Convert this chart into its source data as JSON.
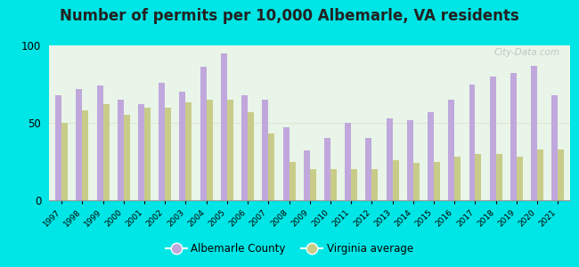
{
  "title": "Number of permits per 10,000 Albemarle, VA residents",
  "years": [
    1997,
    1998,
    1999,
    2000,
    2001,
    2002,
    2003,
    2004,
    2005,
    2006,
    2007,
    2008,
    2009,
    2010,
    2011,
    2012,
    2013,
    2014,
    2015,
    2016,
    2017,
    2018,
    2019,
    2020,
    2021
  ],
  "albemarle": [
    68,
    72,
    74,
    65,
    62,
    76,
    70,
    86,
    95,
    68,
    65,
    47,
    32,
    40,
    50,
    40,
    53,
    52,
    57,
    65,
    75,
    80,
    82,
    87,
    68
  ],
  "virginia": [
    50,
    58,
    62,
    55,
    60,
    60,
    63,
    65,
    65,
    57,
    43,
    25,
    20,
    20,
    20,
    20,
    26,
    24,
    25,
    28,
    30,
    30,
    28,
    33,
    33
  ],
  "albemarle_color": "#c0a8dc",
  "virginia_color": "#c8cc88",
  "background_color": "#e8f5e8",
  "outer_background": "#00e5e5",
  "ylim": [
    0,
    100
  ],
  "yticks": [
    0,
    50,
    100
  ],
  "title_fontsize": 12,
  "watermark": "City-Data.com"
}
